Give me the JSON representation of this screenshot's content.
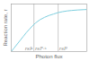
{
  "chart_data": {
    "type": "line",
    "xlabel": "Photon flux",
    "ylabel": "Reaction rate, r",
    "x": [
      0.0,
      0.04,
      0.08,
      0.12,
      0.16,
      0.2,
      0.24,
      0.28,
      0.32,
      0.38,
      0.44,
      0.5,
      0.56,
      0.62,
      0.68,
      0.74,
      0.8,
      0.88,
      0.96,
      1.0
    ],
    "values": [
      0.0,
      0.08,
      0.16,
      0.24,
      0.32,
      0.4,
      0.47,
      0.54,
      0.6,
      0.67,
      0.72,
      0.76,
      0.79,
      0.82,
      0.84,
      0.855,
      0.865,
      0.875,
      0.882,
      0.885
    ],
    "color": "#7ecfdf",
    "vlines": [
      0.3,
      0.62
    ],
    "annotations": [
      "r∝I¹",
      "r∝I°⋅⁵",
      "r∝I⁰"
    ],
    "xlim": [
      0,
      1.0
    ],
    "ylim": [
      0,
      1.0
    ],
    "tick_labels": false
  }
}
